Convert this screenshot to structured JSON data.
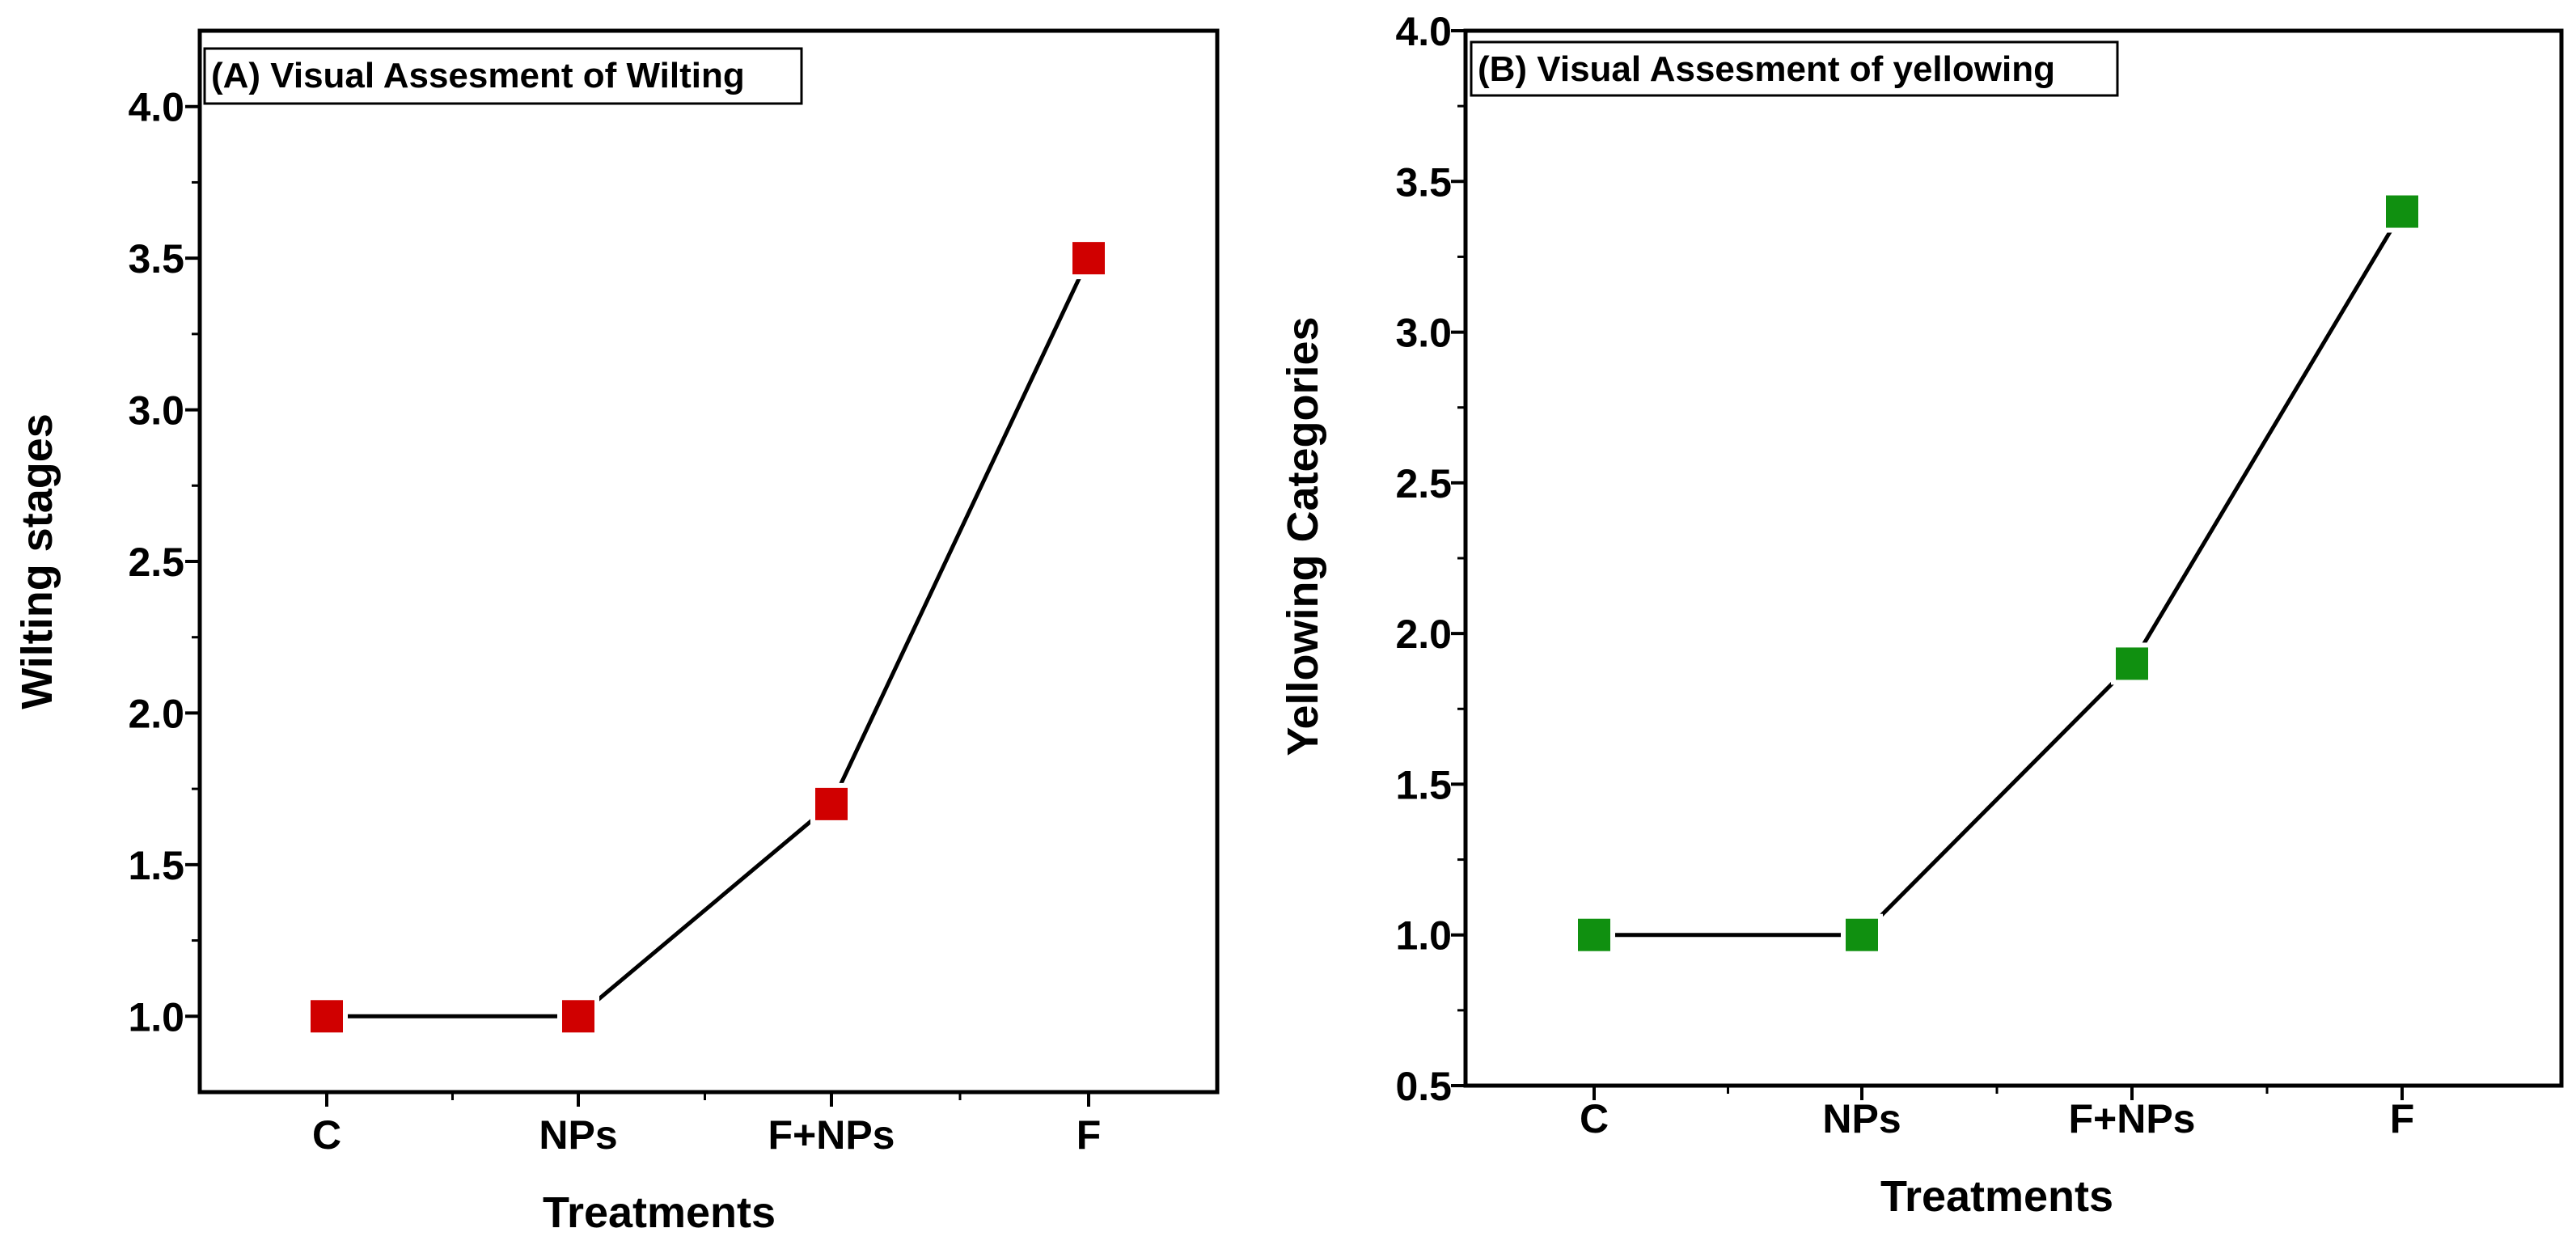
{
  "chart_data": [
    {
      "type": "line",
      "title": "(A) Visual Assesment of Wilting",
      "xlabel": "Treatments",
      "ylabel": "Wilting stages",
      "categories": [
        "C",
        "NPs",
        "F+NPs",
        "F"
      ],
      "values": [
        1.0,
        1.0,
        1.7,
        3.5
      ],
      "ylim": [
        0.75,
        4.25
      ],
      "yticks": [
        1.0,
        1.5,
        2.0,
        2.5,
        3.0,
        3.5,
        4.0
      ],
      "ytick_labels": [
        "1.0",
        "1.5",
        "2.0",
        "2.5",
        "3.0",
        "3.5",
        "4.0"
      ],
      "marker": "square",
      "marker_color": "#d00000",
      "line_color": "#000000",
      "grid": false
    },
    {
      "type": "line",
      "title": "(B) Visual Assesment of yellowing",
      "xlabel": "Treatments",
      "ylabel": "Yellowing Categories",
      "categories": [
        "C",
        "NPs",
        "F+NPs",
        "F"
      ],
      "values": [
        1.0,
        1.0,
        1.9,
        3.4
      ],
      "ylim": [
        0.5,
        4.0
      ],
      "yticks": [
        0.5,
        1.0,
        1.5,
        2.0,
        2.5,
        3.0,
        3.5,
        4.0
      ],
      "ytick_labels": [
        "0.5",
        "1.0",
        "1.5",
        "2.0",
        "2.5",
        "3.0",
        "3.5",
        "4.0"
      ],
      "marker": "square",
      "marker_color": "#109010",
      "line_color": "#000000",
      "grid": false
    }
  ]
}
